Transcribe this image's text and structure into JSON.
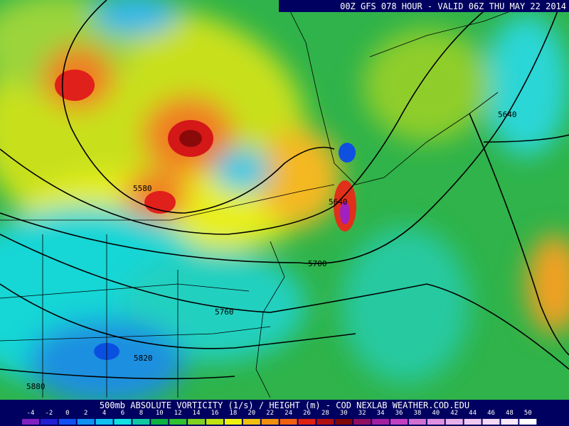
{
  "header": {
    "title": "00Z GFS 078 HOUR - VALID 06Z THU MAY 22 2014"
  },
  "footer": {
    "title": "500mb ABSOLUTE VORTICITY (1/s) / HEIGHT (m) - COD NEXLAB  WEATHER.COD.EDU"
  },
  "contour_labels": [
    "5580",
    "5640",
    "5700",
    "5760",
    "5820",
    "5880",
    "5640"
  ],
  "colorbar": {
    "labels": [
      -4,
      -2,
      0,
      2,
      4,
      6,
      8,
      10,
      12,
      14,
      16,
      18,
      20,
      22,
      24,
      26,
      28,
      30,
      32,
      34,
      36,
      38,
      40,
      42,
      44,
      46,
      48,
      50
    ]
  }
}
